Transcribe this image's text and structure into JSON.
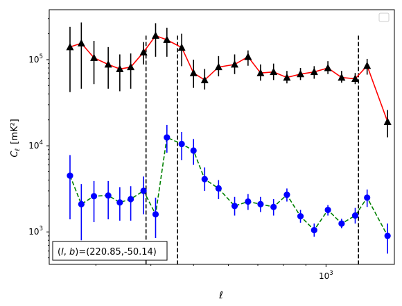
{
  "chart_data": {
    "type": "scatter",
    "title": "",
    "xlabel": "ℓ",
    "ylabel_base": "C",
    "ylabel_sub": "ℓ",
    "ylabel_unit": "[mK²]",
    "xscale": "log",
    "yscale": "log",
    "xlim": [
      235,
      1430
    ],
    "ylim": [
      420,
      380000
    ],
    "x_tick_labels": [
      {
        "value": 1000,
        "base": "10",
        "exp": "3"
      }
    ],
    "y_tick_labels": [
      {
        "value": 1000,
        "base": "10",
        "exp": "3"
      },
      {
        "value": 10000,
        "base": "10",
        "exp": "4"
      },
      {
        "value": 100000,
        "base": "10",
        "exp": "5"
      }
    ],
    "grid": false,
    "legend": "top-right (empty)",
    "vlines": [
      390,
      460,
      1185
    ],
    "annotation": "(l, b)=(220.85,-50.14)",
    "annotation_parts": {
      "open": "(",
      "l": "l",
      "comma": ", ",
      "b": "b",
      "close": ")",
      "value": "=(220.85,-50.14)"
    },
    "series": [
      {
        "marker": "triangle",
        "color": "#000000",
        "line_color": "#ff0000",
        "line_style": "solid",
        "x": [
          262,
          278,
          297,
          320,
          340,
          360,
          385,
          410,
          435,
          470,
          500,
          530,
          570,
          620,
          665,
          710,
          760,
          815,
          875,
          940,
          1010,
          1085,
          1165,
          1240,
          1380
        ],
        "y": [
          140000,
          155000,
          105000,
          88000,
          78000,
          82000,
          122000,
          190000,
          170000,
          138000,
          70000,
          58000,
          82000,
          88000,
          108000,
          70000,
          72000,
          62000,
          68000,
          72000,
          80000,
          62000,
          60000,
          85000,
          19000
        ],
        "y_lo": [
          42000,
          46000,
          52000,
          46000,
          43000,
          46000,
          88000,
          108000,
          108000,
          84000,
          47000,
          45000,
          64000,
          68000,
          85000,
          57000,
          58000,
          53000,
          58000,
          60000,
          68000,
          54000,
          52000,
          67000,
          12500
        ],
        "y_hi": [
          240000,
          270000,
          165000,
          140000,
          115000,
          118000,
          160000,
          265000,
          235000,
          200000,
          100000,
          78000,
          110000,
          115000,
          128000,
          88000,
          90000,
          74000,
          80000,
          84000,
          96000,
          74000,
          70000,
          102000,
          26000
        ]
      },
      {
        "marker": "circle",
        "color": "#0000ff",
        "line_color": "#008000",
        "line_style": "dashed",
        "x": [
          262,
          278,
          297,
          320,
          340,
          360,
          385,
          410,
          435,
          470,
          500,
          530,
          570,
          620,
          665,
          710,
          760,
          815,
          875,
          940,
          1010,
          1085,
          1165,
          1240,
          1380
        ],
        "y": [
          4500,
          2100,
          2600,
          2650,
          2200,
          2400,
          3000,
          1600,
          12500,
          10500,
          8800,
          4100,
          3200,
          2000,
          2250,
          2100,
          1950,
          2700,
          1520,
          1050,
          1800,
          1250,
          1550,
          2500,
          900
        ],
        "y_lo": [
          1400,
          800,
          1300,
          1400,
          1350,
          1350,
          1600,
          850,
          8300,
          6800,
          6000,
          3000,
          2400,
          1550,
          1800,
          1700,
          1550,
          2250,
          1280,
          880,
          1550,
          1100,
          1250,
          1950,
          560
        ],
        "y_hi": [
          7800,
          3600,
          3900,
          3900,
          3300,
          3400,
          4400,
          2500,
          17500,
          14500,
          12000,
          5600,
          4000,
          2550,
          2750,
          2550,
          2400,
          3200,
          1800,
          1250,
          2050,
          1420,
          1900,
          3100,
          1250
        ]
      }
    ]
  }
}
